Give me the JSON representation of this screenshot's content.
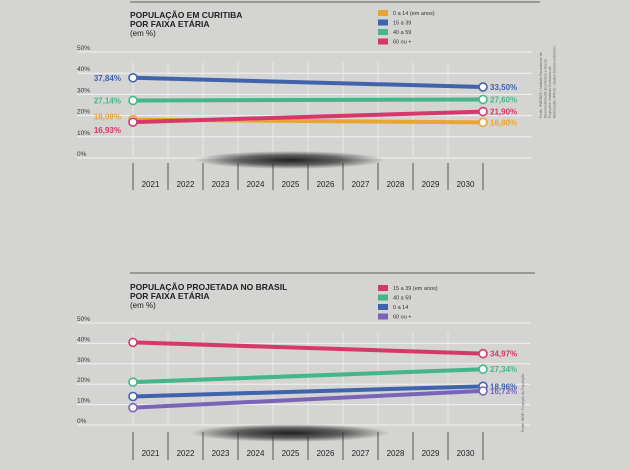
{
  "chart_data": [
    {
      "type": "line",
      "title_lines": [
        "POPULAÇÃO EM CURITIBA",
        "POR FAIXA ETÁRIA"
      ],
      "subtitle": "(em %)",
      "x": [
        "2021",
        "2022",
        "2023",
        "2024",
        "2025",
        "2026",
        "2027",
        "2028",
        "2029",
        "2030"
      ],
      "ylim": [
        0,
        50
      ],
      "yticks": [
        "0%",
        "10%",
        "20%",
        "30%",
        "40%",
        "50%"
      ],
      "series": [
        {
          "name": "0 a 14 (em anos)",
          "color": "#e8a532",
          "start": 18.09,
          "end": 16.8,
          "start_label": "18,09%",
          "end_label": "16,80%"
        },
        {
          "name": "15 a 39",
          "color": "#3f63ad",
          "start": 37.84,
          "end": 33.5,
          "start_label": "37,84%",
          "end_label": "33,50%"
        },
        {
          "name": "40 a 59",
          "color": "#44b68c",
          "start": 27.14,
          "end": 27.6,
          "start_label": "27,14%",
          "end_label": "27,60%"
        },
        {
          "name": "60 ou +",
          "color": "#d6386b",
          "start": 16.93,
          "end": 21.9,
          "start_label": "16,93%",
          "end_label": "21,90%"
        }
      ],
      "source_lines": [
        "Fonte: IPARDES / Instituto Paranaense de",
        "Desenvolvimento Econômico e Social",
        "Projeções: Instituto Curitibano do",
        "Elaboração: IPPUC - Dados Socioeconômicos"
      ]
    },
    {
      "type": "line",
      "title_lines": [
        "POPULAÇÃO PROJETADA NO BRASIL",
        "POR FAIXA ETÁRIA"
      ],
      "subtitle": "(em %)",
      "x": [
        "2021",
        "2022",
        "2023",
        "2024",
        "2025",
        "2026",
        "2027",
        "2028",
        "2029",
        "2030"
      ],
      "ylim": [
        0,
        50
      ],
      "yticks": [
        "0%",
        "10%",
        "20%",
        "30%",
        "40%",
        "50%"
      ],
      "series": [
        {
          "name": "15 a 39 (em anos)",
          "color": "#d6386b",
          "start": 40.5,
          "end": 34.97,
          "start_label": "",
          "end_label": "34,97%"
        },
        {
          "name": "40 a 59",
          "color": "#44b68c",
          "start": 21.0,
          "end": 27.34,
          "start_label": "",
          "end_label": "27,34%"
        },
        {
          "name": "0 a 14",
          "color": "#3f63ad",
          "start": 14.0,
          "end": 18.96,
          "start_label": "",
          "end_label": "18,96%"
        },
        {
          "name": "60 ou +",
          "color": "#7b63b8",
          "start": 8.5,
          "end": 16.73,
          "start_label": "",
          "end_label": "16,73%"
        }
      ],
      "source_lines": [
        "Fonte: IBGE / Projeção da População"
      ]
    }
  ]
}
